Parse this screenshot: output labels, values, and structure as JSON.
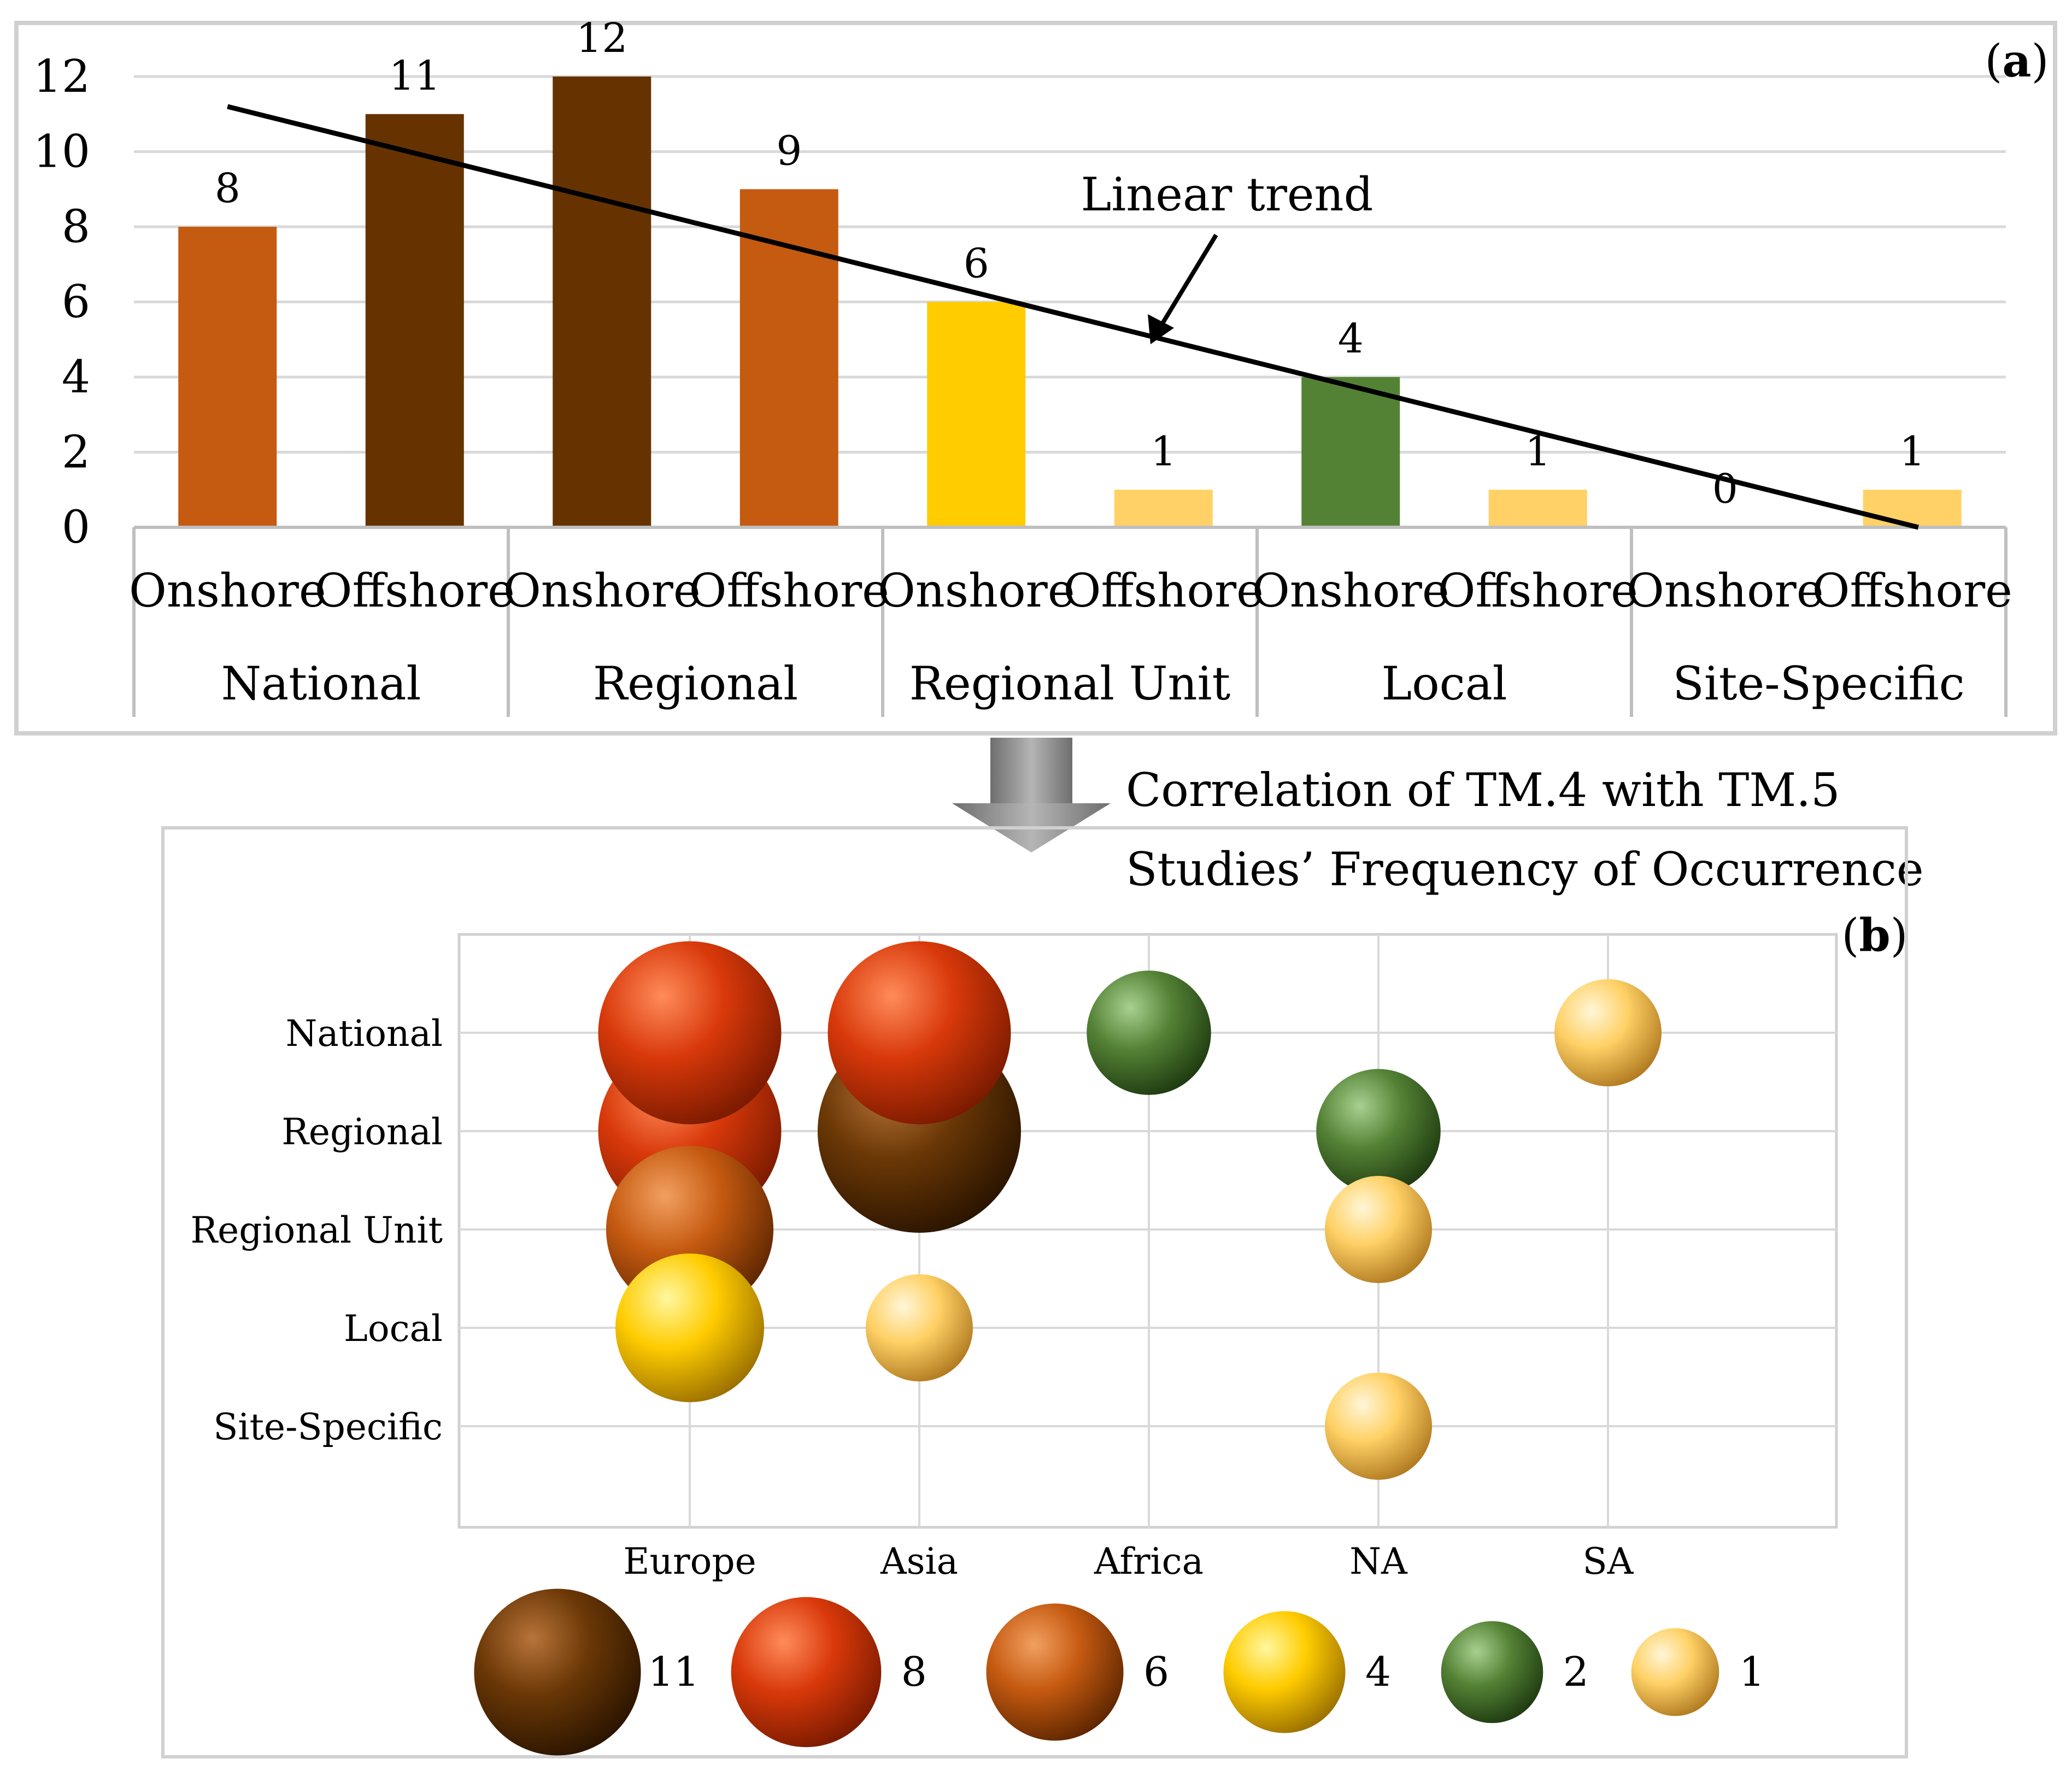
{
  "colors": {
    "onshore_orange": "#C55A11",
    "offshore_brown": "#663300",
    "yellow": "#FFCC00",
    "light_yellow": "#FFD166",
    "green": "#548235",
    "trend": "#000000",
    "grid": "#D9D9D9",
    "frame": "#D0D0D0",
    "arrow_gray": "#8C8C8C"
  },
  "chart_data": [
    {
      "id": "a",
      "type": "bar",
      "panel_label": "a",
      "groups": [
        "National",
        "Regional",
        "Regional Unit",
        "Local",
        "Site-Specific"
      ],
      "subcategories": [
        "Onshore",
        "Offshore"
      ],
      "bars": [
        {
          "group": "National",
          "sub": "Onshore",
          "value": 8,
          "label": "8",
          "color": "#C55A11"
        },
        {
          "group": "National",
          "sub": "Offshore",
          "value": 11,
          "label": "11",
          "color": "#663300"
        },
        {
          "group": "Regional",
          "sub": "Onshore",
          "value": 12,
          "label": "12",
          "color": "#663300"
        },
        {
          "group": "Regional",
          "sub": "Offshore",
          "value": 9,
          "label": "9",
          "color": "#C55A11"
        },
        {
          "group": "Regional Unit",
          "sub": "Onshore",
          "value": 6,
          "label": "6",
          "color": "#FFCC00"
        },
        {
          "group": "Regional Unit",
          "sub": "Offshore",
          "value": 1,
          "label": "1",
          "color": "#FFD166"
        },
        {
          "group": "Local",
          "sub": "Onshore",
          "value": 4,
          "label": "4",
          "color": "#548235"
        },
        {
          "group": "Local",
          "sub": "Offshore",
          "value": 1,
          "label": "1",
          "color": "#FFD166"
        },
        {
          "group": "Site-Specific",
          "sub": "Onshore",
          "value": 0,
          "label": "0",
          "color": "#FFD166"
        },
        {
          "group": "Site-Specific",
          "sub": "Offshore",
          "value": 1,
          "label": "1",
          "color": "#FFD166"
        }
      ],
      "yticks": [
        "0",
        "2",
        "4",
        "6",
        "8",
        "10",
        "12"
      ],
      "ylim": [
        0,
        12
      ],
      "trend": {
        "label": "Linear trend",
        "start_value": 11.2,
        "slope_per_bar": -1.24
      },
      "grid": true
    },
    {
      "id": "b",
      "type": "scatter",
      "subtype": "bubble",
      "panel_label": "b",
      "x_categories": [
        "Europe",
        "Asia",
        "Africa",
        "NA",
        "SA"
      ],
      "y_categories": [
        "National",
        "Regional",
        "Regional Unit",
        "Local",
        "Site-Specific"
      ],
      "points": [
        {
          "x": "Europe",
          "y": "National",
          "value": 8
        },
        {
          "x": "Asia",
          "y": "Regional",
          "value": 11
        },
        {
          "x": "Asia",
          "y": "National",
          "value": 8
        },
        {
          "x": "Europe",
          "y": "Regional",
          "value": 8
        },
        {
          "x": "Europe",
          "y": "Regional Unit",
          "value": 6
        },
        {
          "x": "Europe",
          "y": "Local",
          "value": 4
        },
        {
          "x": "Asia",
          "y": "Local",
          "value": 1
        },
        {
          "x": "Africa",
          "y": "National",
          "value": 2
        },
        {
          "x": "NA",
          "y": "Regional",
          "value": 2
        },
        {
          "x": "NA",
          "y": "Regional Unit",
          "value": 1
        },
        {
          "x": "NA",
          "y": "Site-Specific",
          "value": 1
        },
        {
          "x": "SA",
          "y": "National",
          "value": 1
        }
      ],
      "legend": [
        {
          "value": 11,
          "label": "11",
          "color": "#663300"
        },
        {
          "value": 8,
          "label": "8",
          "color": "#D9390A"
        },
        {
          "value": 6,
          "label": "6",
          "color": "#C55A11"
        },
        {
          "value": 4,
          "label": "4",
          "color": "#FFCC00"
        },
        {
          "value": 2,
          "label": "2",
          "color": "#548235"
        },
        {
          "value": 1,
          "label": "1",
          "color": "#FFD166"
        }
      ],
      "grid": true
    }
  ],
  "transition": {
    "line1": "Correlation of TM.4 with TM.5",
    "line2": "Studies’ Frequency of Occurrence"
  }
}
